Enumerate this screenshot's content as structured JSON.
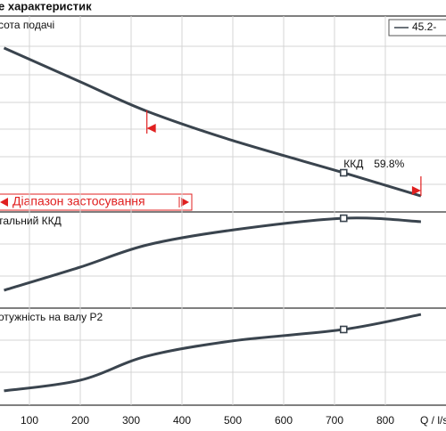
{
  "chart_data": {
    "type": "line",
    "title": "е характеристик",
    "x_label": "Q / l/s",
    "x": [
      50,
      200,
      331,
      500,
      718,
      870
    ],
    "xlim": [
      0,
      900
    ],
    "xticks": [
      100,
      200,
      300,
      400,
      500,
      600,
      700,
      800
    ],
    "color": "#3a444e",
    "legend_name": "45.2-",
    "panels": [
      {
        "label": "сота подачі",
        "ylim": [
          0,
          7
        ],
        "values": [
          5.86,
          4.65,
          3.6,
          2.55,
          1.4,
          0.57
        ]
      },
      {
        "label": "тальний ККД",
        "ylim": [
          0,
          64
        ],
        "values": [
          11.9,
          27.3,
          42,
          52,
          59.8,
          57.5
        ]
      },
      {
        "label": "отужність на валу  P2",
        "ylim": [
          0,
          40
        ],
        "values": [
          5.9,
          10.3,
          20.2,
          26.5,
          31.2,
          37.4
        ]
      }
    ],
    "operating_point": {
      "x": 718,
      "label": "ККД",
      "value": 59.8,
      "value_label": "59.8%"
    },
    "range": {
      "label": "Діапазон застосування",
      "x": [
        331,
        870
      ]
    }
  }
}
